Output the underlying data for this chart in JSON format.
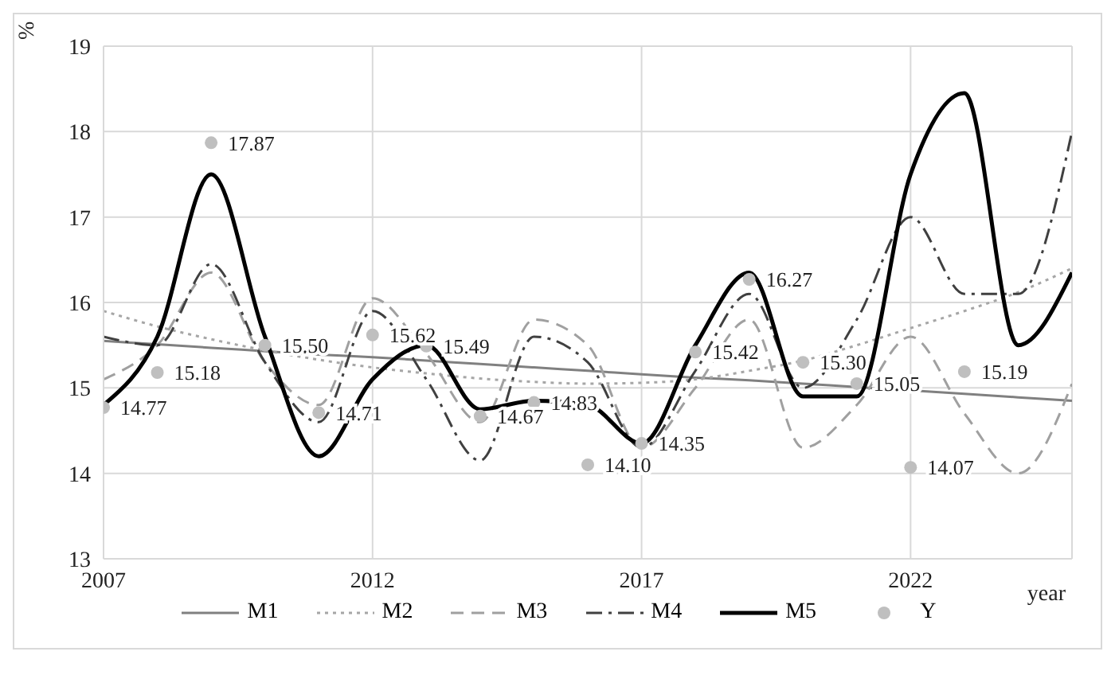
{
  "chart_data": {
    "type": "line",
    "xlabel": "year",
    "ylabel": "%",
    "x": [
      2007,
      2008,
      2009,
      2010,
      2011,
      2012,
      2013,
      2014,
      2015,
      2016,
      2017,
      2018,
      2019,
      2020,
      2021,
      2022,
      2023,
      2024,
      2025
    ],
    "xlim": [
      2007,
      2025
    ],
    "xticks": [
      2007,
      2012,
      2017,
      2022
    ],
    "ylim": [
      13,
      19
    ],
    "yticks": [
      13,
      14,
      15,
      16,
      17,
      18,
      19
    ],
    "grid": true,
    "legend": "bottom",
    "marker": "none",
    "series": [
      {
        "name": "M1",
        "color": "#808080",
        "line_style": "solid",
        "values": [
          15.55,
          15.51,
          15.47,
          15.43,
          15.39,
          15.36,
          15.32,
          15.28,
          15.24,
          15.2,
          15.16,
          15.12,
          15.09,
          15.05,
          15.01,
          14.97,
          14.93,
          14.89,
          14.85
        ]
      },
      {
        "name": "M2",
        "color": "#a6a6a6",
        "line_style": "dotted",
        "values": [
          15.9,
          15.72,
          15.57,
          15.44,
          15.33,
          15.24,
          15.17,
          15.11,
          15.07,
          15.05,
          15.06,
          15.1,
          15.2,
          15.32,
          15.5,
          15.7,
          15.9,
          16.12,
          16.4
        ]
      },
      {
        "name": "M3",
        "color": "#a0a0a0",
        "line_style": "dashed",
        "values": [
          15.1,
          15.5,
          16.35,
          15.3,
          14.8,
          16.05,
          15.4,
          14.6,
          15.8,
          15.5,
          14.3,
          15.0,
          15.8,
          14.3,
          14.8,
          15.6,
          14.7,
          14.0,
          15.05
        ]
      },
      {
        "name": "M4",
        "color": "#404040",
        "line_style": "dashdot",
        "values": [
          15.6,
          15.5,
          16.45,
          15.3,
          14.6,
          15.9,
          15.1,
          14.15,
          15.6,
          15.3,
          14.3,
          15.2,
          16.1,
          15.0,
          15.8,
          17.0,
          16.1,
          16.1,
          18.0
        ]
      },
      {
        "name": "M5",
        "color": "#000000",
        "line_style": "solid",
        "values": [
          14.8,
          15.6,
          17.5,
          15.6,
          14.2,
          15.1,
          15.5,
          14.75,
          14.85,
          14.8,
          14.35,
          15.5,
          16.35,
          14.9,
          14.9,
          17.5,
          18.45,
          15.5,
          16.35
        ]
      },
      {
        "name": "Y",
        "type": "scatter",
        "marker": "circle",
        "color": "#bfbfbf",
        "value_labels": [
          "14.77",
          "15.18",
          "17.87",
          "15.50",
          "14.71",
          "15.62",
          "15.49",
          "14.67",
          "14.83",
          "14.10",
          "14.35",
          "15.42",
          "16.27",
          "15.30",
          "15.05",
          "14.07",
          "15.19"
        ],
        "x": [
          2007,
          2008,
          2009,
          2010,
          2011,
          2012,
          2013,
          2014,
          2015,
          2016,
          2017,
          2018,
          2019,
          2020,
          2021,
          2022,
          2023
        ],
        "values": [
          14.77,
          15.18,
          17.87,
          15.5,
          14.71,
          15.62,
          15.49,
          14.67,
          14.83,
          14.1,
          14.35,
          15.42,
          16.27,
          15.3,
          15.05,
          14.07,
          15.19
        ]
      }
    ]
  }
}
